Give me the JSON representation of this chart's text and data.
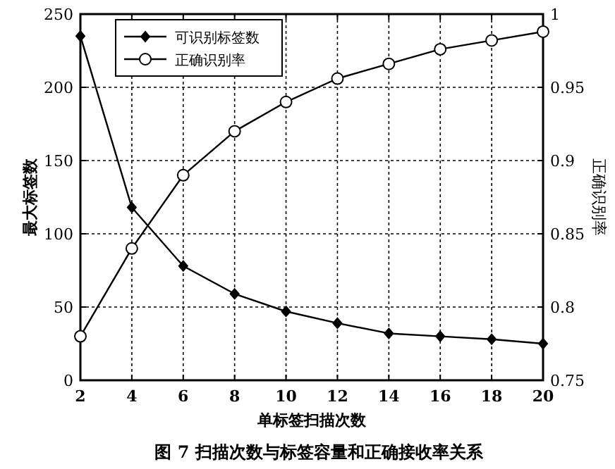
{
  "chart_data": {
    "type": "line",
    "title": "图 7 扫描次数与标签容量和正确接收率关系",
    "xlabel": "单标签扫描次数",
    "ylabel": "最大标签数",
    "y2label": "正确识别率",
    "x": [
      2,
      4,
      6,
      8,
      10,
      12,
      14,
      16,
      18,
      20
    ],
    "series": [
      {
        "name": "可识别标签数",
        "color": "#000000",
        "marker": "diamond",
        "values": [
          235,
          118,
          78,
          59,
          47,
          39,
          32,
          30,
          28,
          25
        ]
      },
      {
        "name": "正确识别率",
        "color": "#000000",
        "marker": "circle",
        "axis": "y2",
        "values": [
          0.78,
          0.84,
          0.89,
          0.92,
          0.94,
          0.956,
          0.966,
          0.976,
          0.982,
          0.988
        ]
      }
    ],
    "xlim": [
      2,
      20
    ],
    "xticks": [
      2,
      4,
      6,
      8,
      10,
      12,
      14,
      16,
      18,
      20
    ],
    "ylim": [
      0,
      250
    ],
    "yticks": [
      0,
      50,
      100,
      150,
      200,
      250
    ],
    "y2lim": [
      0.75,
      1
    ],
    "y2ticks": [
      0.75,
      0.8,
      0.85,
      0.9,
      0.95,
      1
    ],
    "grid": true,
    "legend": "top left",
    "line_style": "solid"
  }
}
